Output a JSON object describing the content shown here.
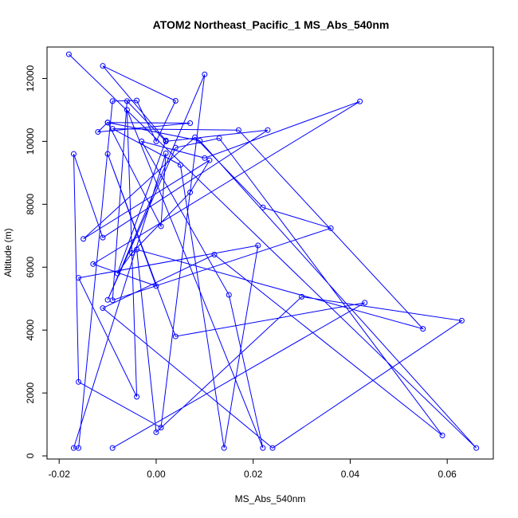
{
  "chart_data": {
    "type": "line",
    "title": "ATOM2 Northeast_Pacific_1 MS_Abs_540nm",
    "xlabel": "MS_Abs_540nm",
    "ylabel": "Altitude (m)",
    "xlim": [
      -0.0225,
      0.0695
    ],
    "ylim": [
      -100,
      13000
    ],
    "xticks": [
      -0.02,
      0.0,
      0.02,
      0.04,
      0.06
    ],
    "xtick_labels": [
      "-0.02",
      "0.00",
      "0.02",
      "0.04",
      "0.06"
    ],
    "yticks": [
      0,
      2000,
      4000,
      6000,
      8000,
      10000,
      12000
    ],
    "ytick_labels": [
      "0",
      "2000",
      "4000",
      "6000",
      "8000",
      "10000",
      "12000"
    ],
    "series": [
      {
        "color": "#0000ff",
        "marker": "open-circle",
        "x": [
          -0.018,
          0.066,
          0.009,
          -0.01,
          -0.012,
          0.007,
          -0.01,
          0.001,
          0.002,
          -0.017,
          -0.016,
          -0.009,
          -0.004,
          0.0,
          0.004,
          -0.011,
          0.002,
          -0.008,
          -0.005,
          0.007,
          0.011,
          -0.015,
          0.008,
          0.022,
          0.036,
          -0.009,
          -0.006,
          0.002,
          0.023,
          -0.011,
          -0.017,
          -0.016,
          0.001,
          0.01,
          -0.01,
          0.004,
          0.013,
          0.059,
          0.012,
          -0.011,
          0.024,
          0.063,
          0.03,
          0.0,
          -0.004,
          0.055,
          0.017,
          -0.009,
          0.005,
          0.014,
          0.021,
          -0.016,
          -0.004,
          -0.006,
          0.022,
          0.015,
          -0.003,
          0.01,
          0.042,
          -0.013,
          0.0,
          -0.01,
          0.004,
          0.043,
          -0.009
        ],
        "y": [
          12770,
          250,
          10020,
          10600,
          10300,
          10580,
          10600,
          7300,
          9620,
          250,
          250,
          11280,
          11300,
          10000,
          11290,
          12400,
          10030,
          5800,
          6450,
          8380,
          9400,
          6900,
          10130,
          7900,
          7240,
          4950,
          11280,
          10000,
          10360,
          6940,
          9600,
          2350,
          900,
          12130,
          4960,
          9800,
          10100,
          650,
          6400,
          4700,
          250,
          4300,
          5060,
          750,
          6560,
          4040,
          10360,
          10400,
          9250,
          250,
          6690,
          5660,
          1880,
          11000,
          250,
          5120,
          10000,
          9470,
          11270,
          6100,
          5400,
          9600,
          3800,
          4870,
          250
        ]
      }
    ]
  }
}
